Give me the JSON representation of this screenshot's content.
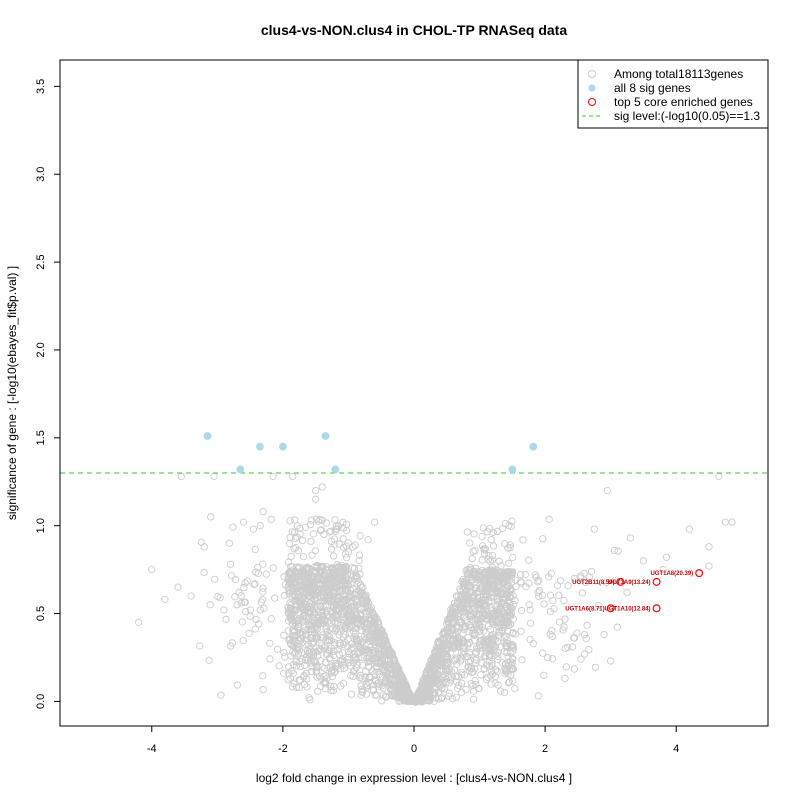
{
  "chart_data": {
    "type": "scatter",
    "title": "clus4-vs-NON.clus4 in CHOL-TP RNASeq data",
    "xlabel": "log2 fold change in expression level : [clus4-vs-NON.clus4 ]",
    "ylabel": "significance of gene : [-log10(ebayes_fit$p.val) ]",
    "xlim": [
      -5.4,
      5.4
    ],
    "ylim": [
      -0.14,
      3.65
    ],
    "x_ticks": [
      -4,
      -2,
      0,
      2,
      4
    ],
    "x_tick_labels": [
      "-4",
      "-2",
      "0",
      "2",
      "4"
    ],
    "y_ticks": [
      0.0,
      0.5,
      1.0,
      1.5,
      2.0,
      2.5,
      3.0,
      3.5
    ],
    "y_tick_labels": [
      "0.0",
      "0.5",
      "1.0",
      "1.5",
      "2.0",
      "2.5",
      "3.0",
      "3.5"
    ],
    "sig_level": 1.3,
    "legend": {
      "position": "top-right",
      "items": [
        {
          "label": "Among total18113genes",
          "kind": "open-circle",
          "color": "#cccccc"
        },
        {
          "label": "all 8 sig genes",
          "kind": "filled-circle",
          "color": "#add8e6"
        },
        {
          "label": "top 5 core enriched genes",
          "kind": "open-circle",
          "color": "#ff0000"
        },
        {
          "label": "sig level:(-log10(0.05)==1.3",
          "kind": "dashed-line",
          "color": "#33cc33"
        }
      ]
    },
    "colors": {
      "background_genes": "#cccccc",
      "sig_genes": "#add8e6",
      "core_genes": "#ff0000",
      "label": "#cc0000",
      "sig_line": "#33cc33"
    },
    "sig_genes": [
      {
        "x": -3.15,
        "y": 1.51
      },
      {
        "x": -2.35,
        "y": 1.45
      },
      {
        "x": -2.0,
        "y": 1.45
      },
      {
        "x": -1.35,
        "y": 1.51
      },
      {
        "x": -2.65,
        "y": 1.32
      },
      {
        "x": -1.2,
        "y": 1.32
      },
      {
        "x": 1.5,
        "y": 1.32
      },
      {
        "x": 1.82,
        "y": 1.45
      }
    ],
    "core_genes": [
      {
        "label": "UGT1A8(20.39)",
        "x": 4.35,
        "y": 0.73
      },
      {
        "label": "UGT2B11(8.59)",
        "x": 3.15,
        "y": 0.68
      },
      {
        "label": "UGT1A9(13.24)",
        "x": 3.7,
        "y": 0.68
      },
      {
        "label": "UGT1A6(8.71)",
        "x": 3.0,
        "y": 0.53
      },
      {
        "label": "UGT1A10(12.84)",
        "x": 3.7,
        "y": 0.53
      }
    ],
    "outlier_genes": [
      {
        "x": -4.2,
        "y": 0.45
      },
      {
        "x": -4.0,
        "y": 0.75
      },
      {
        "x": -3.8,
        "y": 0.58
      },
      {
        "x": -3.6,
        "y": 0.65
      },
      {
        "x": -3.4,
        "y": 0.6
      },
      {
        "x": -3.2,
        "y": 0.88
      },
      {
        "x": -3.1,
        "y": 1.05
      },
      {
        "x": -3.05,
        "y": 1.28
      },
      {
        "x": -3.55,
        "y": 1.28
      },
      {
        "x": -2.9,
        "y": 0.52
      },
      {
        "x": -2.8,
        "y": 0.78
      },
      {
        "x": -2.7,
        "y": 0.55
      },
      {
        "x": -2.6,
        "y": 1.02
      },
      {
        "x": -2.45,
        "y": 0.98
      },
      {
        "x": -2.3,
        "y": 1.08
      },
      {
        "x": -2.2,
        "y": 0.33
      },
      {
        "x": -2.15,
        "y": 1.28
      },
      {
        "x": -1.85,
        "y": 1.28
      },
      {
        "x": -1.5,
        "y": 1.2
      },
      {
        "x": -1.4,
        "y": 1.22
      },
      {
        "x": -1.5,
        "y": 1.15
      },
      {
        "x": -0.6,
        "y": 1.02
      },
      {
        "x": -0.7,
        "y": 0.92
      },
      {
        "x": 4.2,
        "y": 0.98
      },
      {
        "x": 4.5,
        "y": 0.88
      },
      {
        "x": 4.75,
        "y": 1.02
      },
      {
        "x": 4.85,
        "y": 1.02
      },
      {
        "x": 4.65,
        "y": 1.28
      },
      {
        "x": 3.5,
        "y": 0.8
      },
      {
        "x": 3.25,
        "y": 0.62
      },
      {
        "x": 3.85,
        "y": 0.82
      },
      {
        "x": 3.8,
        "y": 0.75
      },
      {
        "x": 2.6,
        "y": 0.38
      },
      {
        "x": 2.95,
        "y": 1.2
      },
      {
        "x": 2.75,
        "y": 0.98
      },
      {
        "x": 4.5,
        "y": 0.77
      },
      {
        "x": 3.0,
        "y": 0.23
      },
      {
        "x": 2.9,
        "y": 0.38
      },
      {
        "x": 3.3,
        "y": 0.93
      }
    ]
  }
}
